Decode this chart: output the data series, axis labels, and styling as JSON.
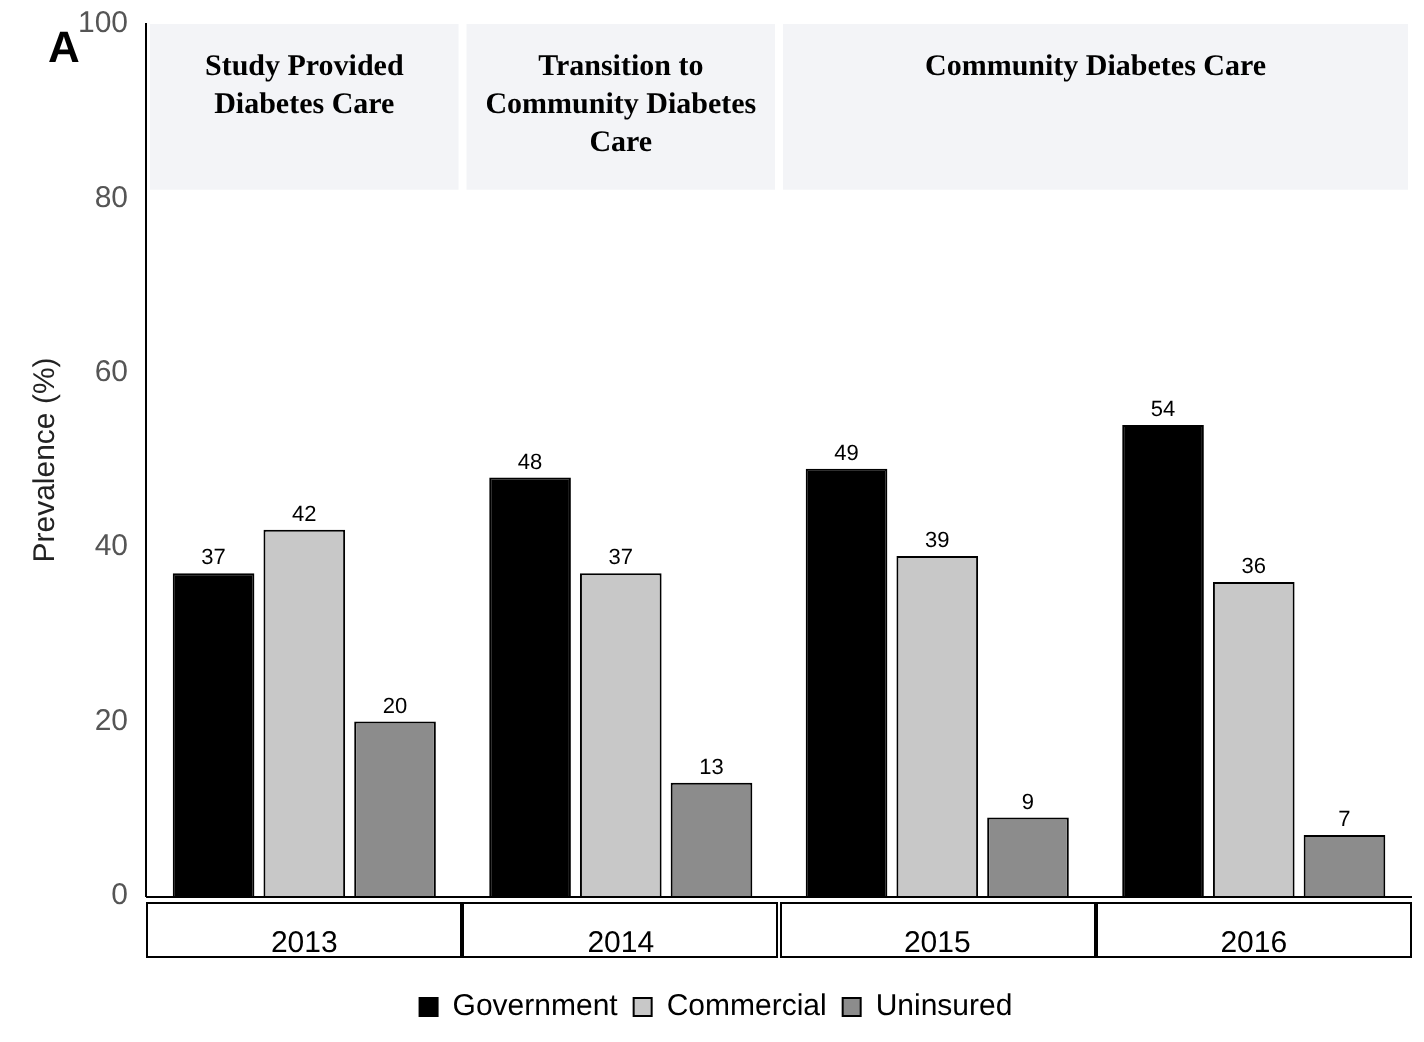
{
  "chart_data": {
    "type": "bar",
    "ylabel": "Prevalence (%)",
    "categories": [
      "2013",
      "2014",
      "2015",
      "2016"
    ],
    "series": [
      {
        "name": "Government",
        "color": "#000000",
        "values": [
          37,
          48,
          49,
          54
        ]
      },
      {
        "name": "Commercial",
        "color": "#c8c8c8",
        "values": [
          42,
          37,
          39,
          36
        ]
      },
      {
        "name": "Uninsured",
        "color": "#8c8c8c",
        "values": [
          20,
          13,
          9,
          7
        ]
      }
    ],
    "ylim": [
      0,
      100
    ],
    "yticks": [
      0,
      20,
      40,
      60,
      80,
      100
    ],
    "grid": false,
    "legend": "bottom",
    "data_labels": true,
    "bands": [
      {
        "axis": "x",
        "from": "2013",
        "to": "2013",
        "label": "Study Provided Diabetes Care",
        "color": "#f3f4f7"
      },
      {
        "axis": "x",
        "from": "2014",
        "to": "2014",
        "label": "Transition to Community Diabetes Care",
        "color": "#f3f4f7"
      },
      {
        "axis": "x",
        "from": "2015",
        "to": "2016",
        "label": "Community Diabetes Care",
        "color": "#f3f4f7"
      }
    ],
    "annotations": [
      "A"
    ]
  }
}
